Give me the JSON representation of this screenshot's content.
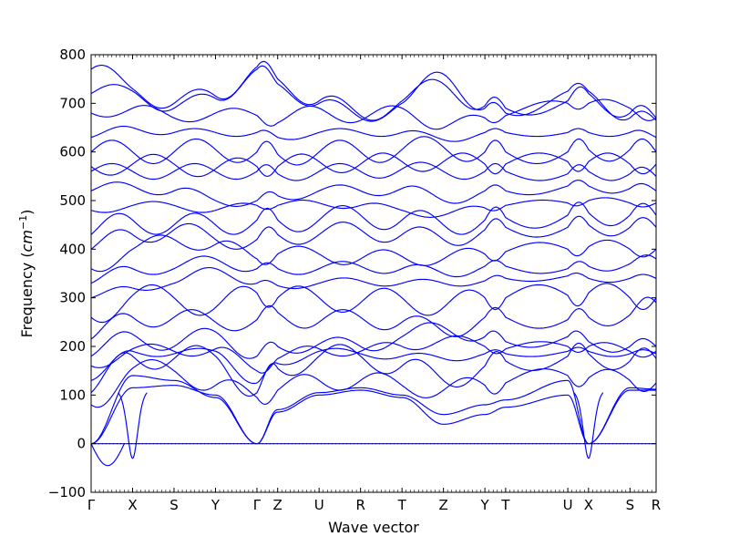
{
  "chart_data": {
    "type": "line",
    "title": "",
    "xlabel": "Wave vector",
    "ylabel_text": "Frequency (",
    "ylabel_unit_base": "cm",
    "ylabel_unit_exp": "−1",
    "ylabel_close": ")",
    "ylim": [
      -100,
      800
    ],
    "yticks": [
      "-100",
      "0",
      "100",
      "200",
      "300",
      "400",
      "500",
      "600",
      "700",
      "800"
    ],
    "path_length": 13.63,
    "high_symmetry_points": [
      {
        "label": "Γ",
        "x": 0.0
      },
      {
        "label": "X",
        "x": 1.0
      },
      {
        "label": "S",
        "x": 2.0
      },
      {
        "label": "Y",
        "x": 3.0
      },
      {
        "label": "Γ",
        "x": 4.0
      },
      {
        "label": "Z",
        "x": 4.5
      },
      {
        "label": "U",
        "x": 5.5
      },
      {
        "label": "R",
        "x": 6.5
      },
      {
        "label": "T",
        "x": 7.5
      },
      {
        "label": "Z",
        "x": 8.5
      },
      {
        "label": "Y",
        "x": 9.5
      },
      {
        "label": "T",
        "x": 10.0
      },
      {
        "label": "U",
        "x": 11.5
      },
      {
        "label": "X",
        "x": 12.0
      },
      {
        "label": "S",
        "x": 13.0
      },
      {
        "label": "R",
        "x": 13.63
      }
    ],
    "zero_line": true,
    "series_color": "#0000ff",
    "bands_at_symmetry_points": [
      [
        0,
        0,
        0,
        0,
        0,
        0,
        0,
        0,
        0,
        0,
        0,
        0,
        0,
        0,
        0,
        0
      ],
      [
        0,
        115,
        120,
        100,
        0,
        65,
        100,
        110,
        95,
        40,
        60,
        75,
        100,
        0,
        110,
        110
      ],
      [
        0,
        140,
        130,
        95,
        0,
        70,
        105,
        115,
        100,
        60,
        80,
        90,
        130,
        0,
        115,
        112
      ],
      [
        80,
        155,
        150,
        120,
        95,
        110,
        130,
        130,
        120,
        110,
        120,
        125,
        140,
        135,
        130,
        125
      ],
      [
        105,
        180,
        175,
        180,
        105,
        155,
        180,
        180,
        160,
        130,
        160,
        170,
        180,
        185,
        170,
        175
      ],
      [
        130,
        190,
        185,
        190,
        125,
        165,
        190,
        185,
        180,
        175,
        185,
        185,
        190,
        190,
        185,
        185
      ],
      [
        160,
        195,
        190,
        195,
        150,
        175,
        195,
        190,
        200,
        215,
        200,
        195,
        200,
        200,
        190,
        190
      ],
      [
        180,
        225,
        200,
        230,
        180,
        200,
        205,
        200,
        220,
        240,
        220,
        210,
        220,
        210,
        200,
        200
      ],
      [
        215,
        260,
        260,
        250,
        255,
        270,
        250,
        260,
        250,
        230,
        260,
        260,
        255,
        260,
        265,
        290
      ],
      [
        260,
        305,
        300,
        280,
        310,
        300,
        300,
        290,
        300,
        280,
        300,
        300,
        305,
        310,
        300,
        300
      ],
      [
        300,
        320,
        330,
        360,
        330,
        325,
        330,
        335,
        330,
        330,
        335,
        340,
        345,
        340,
        340,
        340
      ],
      [
        330,
        360,
        360,
        380,
        360,
        360,
        360,
        365,
        360,
        350,
        365,
        365,
        360,
        365,
        370,
        380
      ],
      [
        360,
        400,
        420,
        410,
        380,
        390,
        390,
        380,
        385,
        380,
        390,
        395,
        400,
        405,
        400,
        400
      ],
      [
        400,
        430,
        440,
        420,
        420,
        430,
        430,
        440,
        430,
        420,
        440,
        445,
        445,
        450,
        445,
        445
      ],
      [
        430,
        460,
        450,
        450,
        460,
        460,
        460,
        470,
        460,
        450,
        460,
        465,
        470,
        475,
        470,
        470
      ],
      [
        480,
        490,
        490,
        480,
        490,
        490,
        495,
        490,
        480,
        470,
        485,
        490,
        495,
        500,
        495,
        495
      ],
      [
        520,
        530,
        520,
        500,
        500,
        510,
        520,
        520,
        525,
        500,
        520,
        520,
        530,
        530,
        525,
        520
      ],
      [
        560,
        560,
        560,
        560,
        560,
        555,
        560,
        560,
        565,
        560,
        560,
        560,
        555,
        560,
        555,
        550
      ],
      [
        570,
        575,
        575,
        565,
        570,
        570,
        580,
        575,
        580,
        580,
        575,
        575,
        580,
        580,
        575,
        575
      ],
      [
        600,
        600,
        600,
        605,
        600,
        595,
        600,
        600,
        605,
        610,
        600,
        600,
        600,
        605,
        605,
        600
      ],
      [
        630,
        650,
        640,
        640,
        640,
        630,
        640,
        640,
        640,
        625,
        640,
        640,
        640,
        640,
        640,
        630
      ],
      [
        680,
        690,
        670,
        680,
        675,
        660,
        690,
        665,
        690,
        650,
        670,
        675,
        700,
        700,
        690,
        670
      ],
      [
        720,
        725,
        690,
        710,
        770,
        740,
        700,
        670,
        700,
        760,
        690,
        680,
        725,
        725,
        670,
        665
      ],
      [
        770,
        730,
        700,
        715,
        775,
        750,
        705,
        675,
        705,
        740,
        695,
        690,
        705,
        720,
        680,
        670
      ]
    ],
    "acoustic_dips": [
      {
        "near": "X",
        "position": 1.0,
        "value": -30
      },
      {
        "near": "X",
        "position": 12.0,
        "value": -30
      }
    ],
    "min_acoustic_value": -45
  }
}
